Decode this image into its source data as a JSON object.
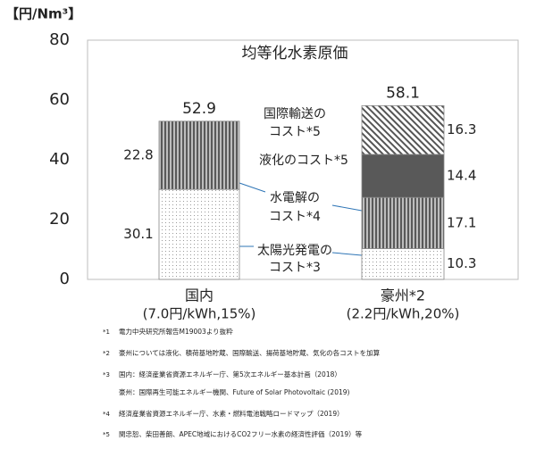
{
  "chart_data": {
    "type": "stacked-bar",
    "title": "均等化水素原価",
    "ylabel": "【円/Nm³】",
    "categories": [
      "国内",
      "豪州*2"
    ],
    "category_details": [
      "(7.0円/kWh,15%)",
      "(2.2円/kWh,20%)"
    ],
    "series": [
      {
        "name": [
          "太陽光発電の",
          "コスト*3"
        ],
        "pattern": "dots",
        "color": "#9a9a9a",
        "values": [
          30.1,
          10.3
        ]
      },
      {
        "name": [
          "水電解の",
          "コスト*4"
        ],
        "pattern": "vlines",
        "color": "#595959",
        "values": [
          22.8,
          17.1
        ]
      },
      {
        "name": [
          "液化のコスト*5"
        ],
        "pattern": "solid",
        "color": "#595959",
        "values": [
          null,
          14.4
        ]
      },
      {
        "name": [
          "国際輸送の",
          "コスト*5"
        ],
        "pattern": "hatch",
        "color": "#555555",
        "values": [
          null,
          16.3
        ]
      }
    ],
    "totals": [
      52.9,
      58.1
    ],
    "ylim": [
      0,
      80
    ],
    "yticks": [
      0,
      20,
      40,
      60,
      80
    ],
    "grid": false,
    "notes": [
      [
        "*1",
        "電力中央研究所報告M19003より抜粋"
      ],
      [
        "*2",
        "豪州については液化、積荷基地貯蔵、国際輸送、揚荷基地貯蔵、気化の各コストを加算"
      ],
      [
        "*3",
        "国内：経済産業省資源エネルギー庁、第5次エネルギー基本計画（2018）"
      ],
      [
        "",
        "豪州：国際再生可能エネルギー機関、Future of Solar Photovoltaic (2019)"
      ],
      [
        "*4",
        "経済産業省資源エネルギー庁、水素・燃料電池戦略ロードマップ（2019）"
      ],
      [
        "*5",
        "関忠恕、柴田善朗、APEC地域におけるCO2フリー水素の経済性評価（2019）等"
      ]
    ]
  }
}
